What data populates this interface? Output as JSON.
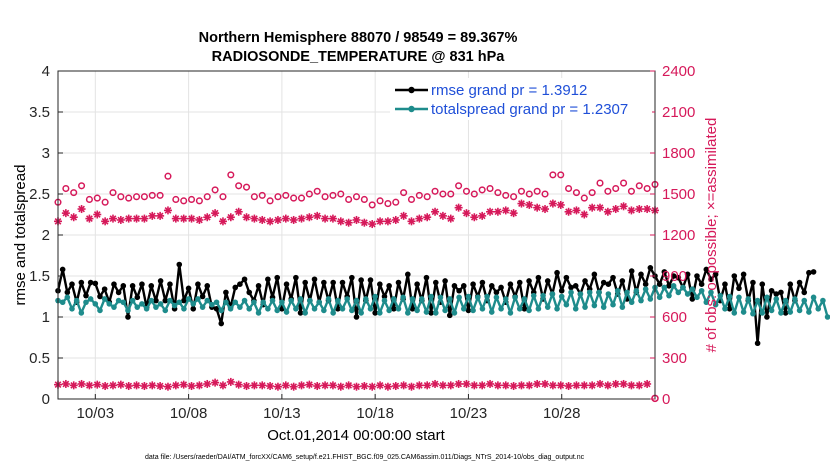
{
  "chart_data": {
    "type": "line",
    "title": "Northern Hemisphere 88070 / 98549 = 89.367%",
    "subtitle": "RADIOSONDE_TEMPERATURE @ 831 hPa",
    "xlabel": "Oct.01,2014 00:00:00 start",
    "ylabel": "rmse and totalspread",
    "ylabel_right": "# of obs: o=possible; ×=assimilated",
    "xlim": [
      1,
      33
    ],
    "ylim": [
      0,
      4
    ],
    "ylim_right": [
      0,
      2400
    ],
    "x_ticks": [
      3,
      8,
      13,
      18,
      23,
      28
    ],
    "x_tick_labels": [
      "10/03",
      "10/08",
      "10/13",
      "10/18",
      "10/23",
      "10/28"
    ],
    "y_ticks": [
      "0",
      "0.5",
      "1",
      "1.5",
      "2",
      "2.5",
      "3",
      "3.5",
      "4"
    ],
    "y_right_ticks": [
      "0",
      "300",
      "600",
      "900",
      "1200",
      "1500",
      "1800",
      "2100",
      "2400"
    ],
    "grid": true,
    "legend_position": "top-right",
    "x_start": 1,
    "x_step": 0.25,
    "series": [
      {
        "name": "rmse grand pr = 1.3912",
        "axis": "left",
        "color": "#000000",
        "marker": "filled-circle",
        "values": [
          1.32,
          1.58,
          1.3,
          1.4,
          1.18,
          1.42,
          1.26,
          1.42,
          1.41,
          1.25,
          1.34,
          1.18,
          1.4,
          1.3,
          1.38,
          1.0,
          1.38,
          1.24,
          1.4,
          1.12,
          1.38,
          1.2,
          1.44,
          1.2,
          1.4,
          1.1,
          1.64,
          1.2,
          1.35,
          1.1,
          1.4,
          1.25,
          1.38,
          1.12,
          1.1,
          0.92,
          1.3,
          1.12,
          1.36,
          1.4,
          1.46,
          1.3,
          1.2,
          1.38,
          1.15,
          1.46,
          1.24,
          1.48,
          1.1,
          1.4,
          1.22,
          1.48,
          1.05,
          1.42,
          1.2,
          1.46,
          1.18,
          1.42,
          1.2,
          1.42,
          1.1,
          1.42,
          1.25,
          1.48,
          1.0,
          1.45,
          1.2,
          1.45,
          1.05,
          1.4,
          1.25,
          1.38,
          1.1,
          1.42,
          1.22,
          1.52,
          1.1,
          1.4,
          1.2,
          1.48,
          1.05,
          1.42,
          1.18,
          1.44,
          1.02,
          1.38,
          1.32,
          1.38,
          1.08,
          1.4,
          1.25,
          1.42,
          1.2,
          1.38,
          1.3,
          1.36,
          1.18,
          1.4,
          1.25,
          1.42,
          1.1,
          1.44,
          1.3,
          1.48,
          1.22,
          1.44,
          1.28,
          1.54,
          1.32,
          1.48,
          1.36,
          1.38,
          1.28,
          1.44,
          1.34,
          1.52,
          1.3,
          1.42,
          1.4,
          1.48,
          1.28,
          1.44,
          1.22,
          1.56,
          1.3,
          1.52,
          1.4,
          1.6,
          1.5,
          1.4,
          1.55,
          1.38,
          1.5,
          1.48,
          1.36,
          1.52,
          1.22,
          1.5,
          1.4,
          1.58,
          1.46,
          1.52,
          1.2,
          1.4,
          1.1,
          1.5,
          1.35,
          1.52,
          1.2,
          1.42,
          0.68,
          1.4,
          1.0,
          1.32,
          1.28,
          1.3,
          1.05,
          1.4,
          1.2,
          1.42,
          1.3,
          1.54,
          1.55
        ]
      },
      {
        "name": "totalspread grand pr = 1.2307",
        "axis": "left",
        "color": "#1e8c8c",
        "marker": "filled-circle",
        "values": [
          1.2,
          1.18,
          1.24,
          1.1,
          1.2,
          1.05,
          1.18,
          1.22,
          1.16,
          1.08,
          1.22,
          1.16,
          1.12,
          1.2,
          1.18,
          1.08,
          1.2,
          1.12,
          1.16,
          1.1,
          1.2,
          1.12,
          1.16,
          1.08,
          1.2,
          1.14,
          1.18,
          1.1,
          1.22,
          1.16,
          1.22,
          1.12,
          1.2,
          1.15,
          1.18,
          1.08,
          1.18,
          1.1,
          1.18,
          1.12,
          1.2,
          1.1,
          1.18,
          1.05,
          1.18,
          1.1,
          1.2,
          1.08,
          1.18,
          1.06,
          1.2,
          1.1,
          1.22,
          1.05,
          1.2,
          1.1,
          1.18,
          1.08,
          1.22,
          1.05,
          1.2,
          1.1,
          1.22,
          1.08,
          1.2,
          1.05,
          1.22,
          1.1,
          1.25,
          1.05,
          1.2,
          1.08,
          1.22,
          1.1,
          1.24,
          1.05,
          1.22,
          1.08,
          1.22,
          1.06,
          1.25,
          1.05,
          1.24,
          1.08,
          1.22,
          1.05,
          1.24,
          1.1,
          1.25,
          1.08,
          1.24,
          1.1,
          1.25,
          1.06,
          1.24,
          1.1,
          1.22,
          1.05,
          1.24,
          1.1,
          1.22,
          1.08,
          1.26,
          1.1,
          1.26,
          1.12,
          1.28,
          1.1,
          1.25,
          1.15,
          1.3,
          1.1,
          1.28,
          1.12,
          1.3,
          1.14,
          1.3,
          1.12,
          1.28,
          1.15,
          1.32,
          1.12,
          1.3,
          1.18,
          1.32,
          1.2,
          1.34,
          1.22,
          1.36,
          1.24,
          1.36,
          1.26,
          1.38,
          1.3,
          1.36,
          1.28,
          1.34,
          1.24,
          1.32,
          1.18,
          1.3,
          1.15,
          1.26,
          1.1,
          1.25,
          1.05,
          1.24,
          1.06,
          1.22,
          1.04,
          1.2,
          1.05,
          1.24,
          1.08,
          1.22,
          1.05,
          1.2,
          1.06,
          1.22,
          1.08,
          1.2,
          1.06,
          1.24,
          1.1,
          1.2,
          1.0
        ]
      },
      {
        "name": "possible",
        "axis": "right",
        "color": "#d6195a",
        "marker": "open-circle",
        "values": [
          1440,
          1540,
          1510,
          1560,
          1460,
          1470,
          1440,
          1510,
          1480,
          1470,
          1480,
          1480,
          1490,
          1490,
          1630,
          1460,
          1450,
          1460,
          1450,
          1480,
          1530,
          1480,
          1640,
          1560,
          1550,
          1480,
          1490,
          1450,
          1480,
          1490,
          1470,
          1470,
          1500,
          1520,
          1480,
          1490,
          1500,
          1460,
          1480,
          1460,
          1420,
          1450,
          1430,
          1440,
          1510,
          1460,
          1490,
          1480,
          1520,
          1500,
          1500,
          1560,
          1520,
          1500,
          1530,
          1540,
          1510,
          1490,
          1480,
          1520,
          1500,
          1520,
          1500,
          1640,
          1640,
          1540,
          1510,
          1470,
          1510,
          1580,
          1520,
          1540,
          1580,
          1520,
          1560,
          1540,
          1570
        ]
      },
      {
        "name": "assimilated",
        "axis": "right",
        "color": "#d6195a",
        "marker": "asterisk",
        "values": [
          1300,
          1360,
          1330,
          1390,
          1320,
          1350,
          1300,
          1320,
          1310,
          1320,
          1320,
          1320,
          1340,
          1340,
          1380,
          1320,
          1320,
          1320,
          1310,
          1330,
          1360,
          1300,
          1330,
          1370,
          1330,
          1320,
          1310,
          1300,
          1310,
          1320,
          1310,
          1320,
          1330,
          1340,
          1320,
          1320,
          1300,
          1290,
          1310,
          1290,
          1280,
          1300,
          1300,
          1310,
          1340,
          1300,
          1320,
          1330,
          1370,
          1340,
          1320,
          1400,
          1360,
          1330,
          1340,
          1370,
          1370,
          1380,
          1360,
          1430,
          1420,
          1400,
          1390,
          1430,
          1420,
          1370,
          1380,
          1350,
          1400,
          1400,
          1370,
          1390,
          1410,
          1380,
          1390,
          1390,
          1380
        ]
      },
      {
        "name": "",
        "axis": "right",
        "color": "#d6195a",
        "marker": "asterisk",
        "values": [
          105,
          110,
          100,
          110,
          100,
          105,
          95,
          100,
          105,
          95,
          100,
          95,
          100,
          95,
          90,
          100,
          105,
          95,
          100,
          110,
          120,
          100,
          125,
          105,
          95,
          100,
          100,
          95,
          90,
          100,
          90,
          100,
          105,
          95,
          100,
          100,
          90,
          100,
          90,
          95,
          90,
          100,
          90,
          95,
          100,
          90,
          100,
          100,
          110,
          100,
          100,
          110,
          110,
          100,
          100,
          110,
          100,
          100,
          95,
          100,
          100,
          110,
          110,
          100,
          100,
          95,
          100,
          100,
          100,
          110,
          100,
          110,
          110,
          100,
          100,
          110,
          5
        ]
      }
    ]
  },
  "footer": "data file: /Users/raeder/DAI/ATM_forcXX/CAM6_setup/f.e21.FHIST_BGC.f09_025.CAM6assim.011/Diags_NTrS_2014-10/obs_diag_output.nc"
}
